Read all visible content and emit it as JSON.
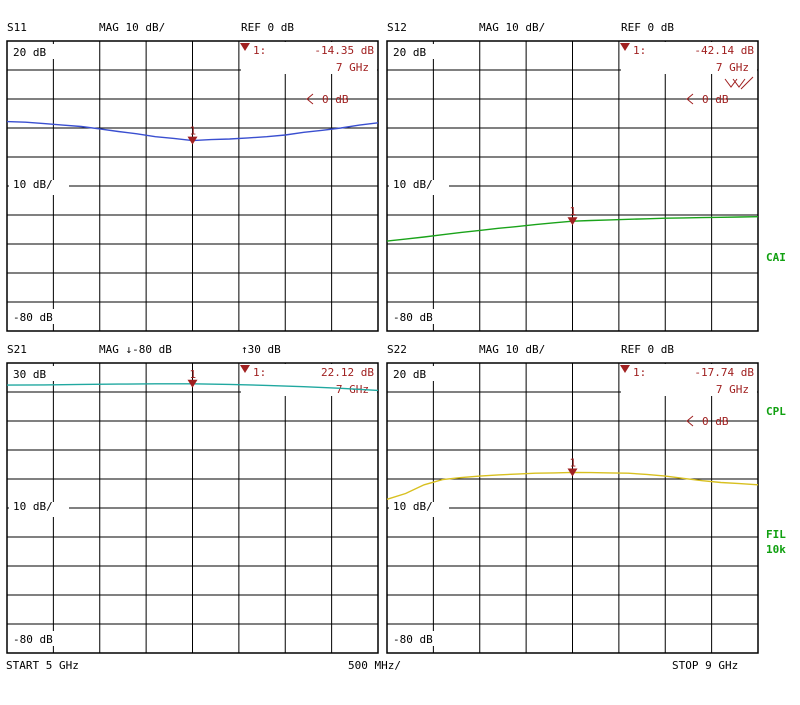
{
  "colors": {
    "background": "#ffffff",
    "grid": "#000000",
    "marker": "#a02020",
    "s11": "#3a4fd0",
    "s12": "#1aa31a",
    "s21": "#20a8a0",
    "s22": "#d8c020",
    "side": "#10a010"
  },
  "footer": {
    "start": "START  5 GHz",
    "span": "500 MHz/",
    "stop": "STOP 9 GHz"
  },
  "side_labels": {
    "cal": "CAI",
    "cpl": "CPL",
    "fil": "FIL",
    "fil_bw": "10k"
  },
  "chart_data": [
    {
      "type": "line",
      "title": "S11",
      "scale_label": "MAG 10 dB/",
      "ref_label": "REF 0 dB",
      "ref_value_label": "0 dB",
      "tick_labels": {
        "top": "20 dB",
        "middle": "10 dB/",
        "bottom": "-80 dB"
      },
      "marker": {
        "label": "1:",
        "value": "-14.35 dB",
        "freq": "7 GHz",
        "number": "1",
        "x_ghz": 7
      },
      "xlim": [
        5,
        9
      ],
      "ylim": [
        -80,
        20
      ],
      "ref_level_db": 0,
      "has_ref_arrow": true,
      "has_sweep_icon": false,
      "color_key": "s11",
      "x": [
        5.0,
        5.2,
        5.4,
        5.6,
        5.8,
        6.0,
        6.2,
        6.4,
        6.6,
        6.8,
        7.0,
        7.2,
        7.4,
        7.6,
        7.8,
        8.0,
        8.2,
        8.4,
        8.6,
        8.8,
        9.0
      ],
      "y": [
        -7.8,
        -8.0,
        -8.5,
        -9.0,
        -9.5,
        -10.3,
        -11.2,
        -12.0,
        -13.0,
        -13.6,
        -14.35,
        -14.0,
        -13.8,
        -13.4,
        -13.0,
        -12.4,
        -11.5,
        -10.8,
        -10.0,
        -9.0,
        -8.2
      ]
    },
    {
      "type": "line",
      "title": "S12",
      "scale_label": "MAG 10 dB/",
      "ref_label": "REF 0 dB",
      "ref_value_label": "0 dB",
      "tick_labels": {
        "top": "20 dB",
        "middle": "10 dB/",
        "bottom": "-80 dB"
      },
      "marker": {
        "label": "1:",
        "value": "-42.14 dB",
        "freq": "7 GHz",
        "number": "1",
        "x_ghz": 7
      },
      "xlim": [
        5,
        9
      ],
      "ylim": [
        -80,
        20
      ],
      "ref_level_db": 0,
      "has_ref_arrow": true,
      "has_sweep_icon": true,
      "color_key": "s12",
      "x": [
        5.0,
        5.2,
        5.4,
        5.6,
        5.8,
        6.0,
        6.2,
        6.4,
        6.6,
        6.8,
        7.0,
        7.2,
        7.4,
        7.6,
        7.8,
        8.0,
        8.2,
        8.4,
        8.6,
        8.8,
        9.0
      ],
      "y": [
        -49.0,
        -48.3,
        -47.6,
        -46.8,
        -46.0,
        -45.3,
        -44.6,
        -44.0,
        -43.3,
        -42.7,
        -42.14,
        -41.9,
        -41.7,
        -41.5,
        -41.3,
        -41.1,
        -41.0,
        -40.9,
        -40.8,
        -40.7,
        -40.6
      ]
    },
    {
      "type": "line",
      "title": "S21",
      "scale_label": "MAG ↓-80 dB",
      "ref_label": "↑30 dB",
      "ref_value_label": "",
      "tick_labels": {
        "top": "30 dB",
        "middle": "10 dB/",
        "bottom": "-80 dB"
      },
      "marker": {
        "label": "1:",
        "value": "22.12 dB",
        "freq": "7 GHz",
        "number": "1",
        "x_ghz": 7
      },
      "xlim": [
        5,
        9
      ],
      "ylim": [
        -80,
        30
      ],
      "ref_level_db": 30,
      "has_ref_arrow": false,
      "has_sweep_icon": false,
      "color_key": "s21",
      "x": [
        5.0,
        5.4,
        5.8,
        6.2,
        6.6,
        7.0,
        7.4,
        7.8,
        8.2,
        8.6,
        9.0
      ],
      "y": [
        21.6,
        21.7,
        21.9,
        22.0,
        22.1,
        22.12,
        21.9,
        21.5,
        21.0,
        20.4,
        19.6
      ]
    },
    {
      "type": "line",
      "title": "S22",
      "scale_label": "MAG 10 dB/",
      "ref_label": "REF 0 dB",
      "ref_value_label": "0 dB",
      "tick_labels": {
        "top": "20 dB",
        "middle": "10 dB/",
        "bottom": "-80 dB"
      },
      "marker": {
        "label": "1:",
        "value": "-17.74 dB",
        "freq": "7 GHz",
        "number": "1",
        "x_ghz": 7
      },
      "xlim": [
        5,
        9
      ],
      "ylim": [
        -80,
        20
      ],
      "ref_level_db": 0,
      "has_ref_arrow": true,
      "has_sweep_icon": false,
      "color_key": "s22",
      "x": [
        5.0,
        5.2,
        5.4,
        5.6,
        5.8,
        6.0,
        6.2,
        6.4,
        6.6,
        6.8,
        7.0,
        7.2,
        7.4,
        7.6,
        7.8,
        8.0,
        8.2,
        8.4,
        8.6,
        8.8,
        9.0
      ],
      "y": [
        -27.0,
        -25.0,
        -22.0,
        -20.2,
        -19.5,
        -19.0,
        -18.6,
        -18.3,
        -18.0,
        -17.9,
        -17.74,
        -17.8,
        -17.9,
        -18.0,
        -18.4,
        -19.0,
        -19.8,
        -20.6,
        -21.2,
        -21.6,
        -22.0
      ]
    }
  ]
}
